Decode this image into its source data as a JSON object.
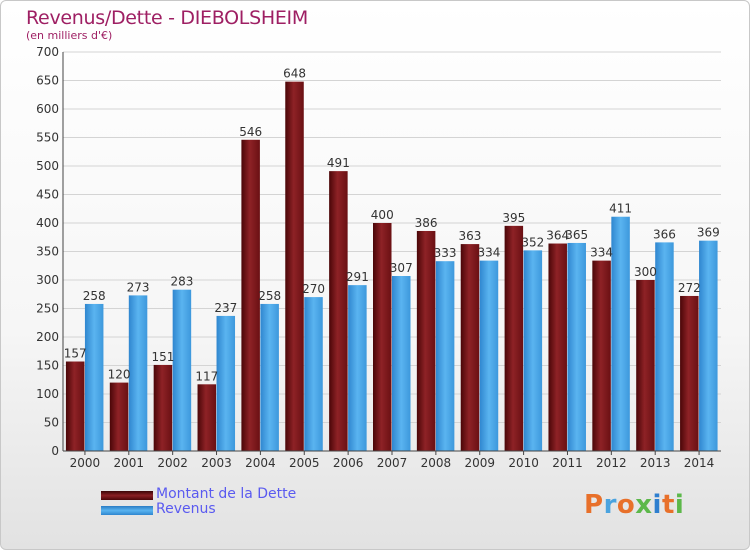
{
  "title": "Revenus/Dette - DIEBOLSHEIM",
  "subtitle": "(en milliers d'€)",
  "brand": "Proxiti",
  "colors": {
    "dette": "#7a1518",
    "revenus": "#4da6e8",
    "title": "#9e1f63",
    "legend_text": "#5a5af0"
  },
  "legend": [
    {
      "label": "Montant de la Dette",
      "color": "#7a1518"
    },
    {
      "label": "Revenus",
      "color": "#4da6e8"
    }
  ],
  "chart_data": {
    "type": "bar",
    "title": "Revenus/Dette - DIEBOLSHEIM",
    "subtitle": "(en milliers d'€)",
    "xlabel": "",
    "ylabel": "",
    "ylim": [
      0,
      700
    ],
    "yticks": [
      0,
      50,
      100,
      150,
      200,
      250,
      300,
      350,
      400,
      450,
      500,
      550,
      600,
      650,
      700
    ],
    "grid": true,
    "legend_position": "bottom",
    "categories": [
      "2000",
      "2001",
      "2002",
      "2003",
      "2004",
      "2005",
      "2006",
      "2007",
      "2008",
      "2009",
      "2010",
      "2011",
      "2012",
      "2013",
      "2014"
    ],
    "series": [
      {
        "name": "Montant de la Dette",
        "values": [
          157,
          120,
          151,
          117,
          546,
          648,
          491,
          400,
          386,
          363,
          395,
          364,
          334,
          300,
          272
        ]
      },
      {
        "name": "Revenus",
        "values": [
          258,
          273,
          283,
          237,
          258,
          270,
          291,
          307,
          333,
          334,
          352,
          365,
          411,
          366,
          369
        ]
      }
    ]
  }
}
